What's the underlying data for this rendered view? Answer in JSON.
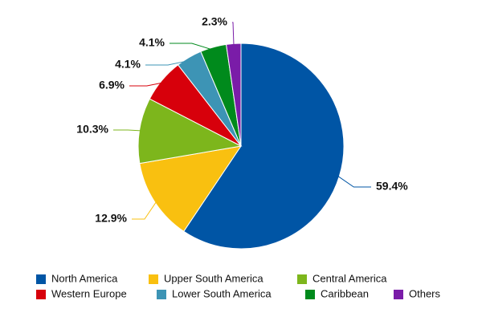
{
  "chart_data": {
    "type": "pie",
    "categories": [
      "North America",
      "Upper South America",
      "Central America",
      "Western Europe",
      "Lower South America",
      "Caribbean",
      "Others"
    ],
    "values": [
      59.4,
      12.9,
      10.3,
      6.9,
      4.1,
      4.1,
      2.3
    ],
    "value_labels": [
      "59.4%",
      "12.9%",
      "10.3%",
      "6.9%",
      "4.1%",
      "4.1%",
      "2.3%"
    ],
    "colors": [
      "#0055a5",
      "#f9c010",
      "#7db61c",
      "#d7000b",
      "#3d94b5",
      "#008a1c",
      "#7a1ca8"
    ],
    "legend": "bottom"
  }
}
